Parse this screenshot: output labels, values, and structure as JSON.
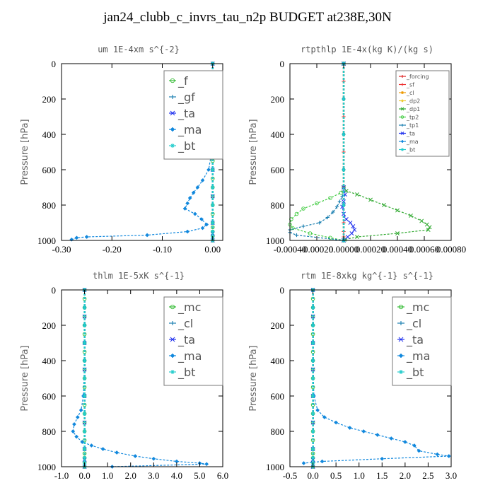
{
  "page": {
    "title": "jan24_clubb_c_invrs_tau_n2p  BUDGET at238E,30N"
  },
  "chart_data": [
    {
      "type": "line",
      "title": "um   1E-4xm s^{-2}",
      "ylabel": "Pressure [hPa]",
      "xlim": [
        -0.3,
        0.02
      ],
      "ylim": [
        1000,
        0
      ],
      "xticks": [
        "-0.30",
        "-0.20",
        "-0.10",
        "0.00"
      ],
      "xtick_values": [
        -0.3,
        -0.2,
        -0.1,
        0.0
      ],
      "yticks": [
        "0",
        "200",
        "400",
        "600",
        "800",
        "1000"
      ],
      "ytick_values": [
        0,
        200,
        400,
        600,
        800,
        1000
      ],
      "legend": {
        "position": "top-right",
        "size": "large"
      },
      "series": [
        {
          "name": "_f",
          "color": "#33bb33",
          "marker": "circle",
          "x": [
            0,
            0,
            0,
            0,
            0,
            0,
            0,
            0,
            0,
            0,
            0,
            0,
            0,
            0,
            0,
            0,
            0,
            0,
            0,
            0,
            0,
            0,
            0
          ],
          "y": [
            0,
            50,
            100,
            150,
            200,
            250,
            300,
            350,
            400,
            450,
            500,
            550,
            600,
            650,
            700,
            750,
            800,
            850,
            900,
            925,
            950,
            975,
            1000
          ]
        },
        {
          "name": "_gf",
          "color": "#1a7fb0",
          "marker": "plus",
          "x": [
            0,
            0,
            0,
            0,
            0,
            0,
            0,
            0,
            0,
            0,
            0,
            0,
            0
          ],
          "y": [
            0,
            100,
            200,
            300,
            400,
            500,
            600,
            700,
            800,
            900,
            950,
            980,
            1000
          ]
        },
        {
          "name": "_ta",
          "color": "#2233ee",
          "marker": "cross",
          "x": [
            0,
            0,
            0,
            0,
            0,
            0,
            0,
            0,
            0
          ],
          "y": [
            0,
            150,
            300,
            450,
            600,
            750,
            900,
            960,
            1000
          ]
        },
        {
          "name": "_ma",
          "color": "#1188dd",
          "marker": "diamond",
          "x": [
            0,
            0,
            0,
            0,
            0,
            -0.002,
            -0.008,
            -0.02,
            -0.03,
            -0.038,
            -0.045,
            -0.05,
            -0.055,
            -0.035,
            -0.022,
            -0.012,
            -0.02,
            -0.05,
            -0.13,
            -0.25,
            -0.27,
            -0.28
          ],
          "y": [
            0,
            100,
            200,
            300,
            400,
            500,
            600,
            660,
            700,
            730,
            760,
            790,
            820,
            850,
            880,
            910,
            930,
            950,
            970,
            980,
            985,
            995
          ]
        },
        {
          "name": "_bt",
          "color": "#22cccc",
          "marker": "star",
          "x": [
            0,
            0,
            0,
            0,
            0,
            0,
            0,
            0,
            0,
            0,
            0,
            0,
            0
          ],
          "y": [
            0,
            100,
            200,
            300,
            400,
            500,
            600,
            700,
            800,
            900,
            950,
            980,
            1000
          ]
        }
      ]
    },
    {
      "type": "line",
      "title": "rtpthlp   1E-4x(kg K)/(kg s)",
      "ylabel": "Pressure [hPa]",
      "xlim": [
        -0.0004,
        0.0008
      ],
      "ylim": [
        1000,
        0
      ],
      "xticks": [
        "-0.00040",
        "-0.00020",
        "0.00000",
        "0.00020",
        "0.00040",
        "0.00060",
        "0.00080"
      ],
      "xtick_values": [
        -0.0004,
        -0.0002,
        0.0,
        0.0002,
        0.0004,
        0.0006,
        0.0008
      ],
      "yticks": [
        "0",
        "200",
        "400",
        "600",
        "800",
        "1000"
      ],
      "ytick_values": [
        0,
        200,
        400,
        600,
        800,
        1000
      ],
      "legend": {
        "position": "top-right",
        "size": "small"
      },
      "series": [
        {
          "name": "_forcing",
          "color": "#dd2222",
          "marker": "plus",
          "x": [
            0,
            0,
            0,
            0,
            0,
            0,
            0,
            0,
            0,
            0,
            0,
            0,
            0
          ],
          "y": [
            0,
            100,
            200,
            300,
            400,
            500,
            600,
            700,
            800,
            900,
            950,
            980,
            1000
          ]
        },
        {
          "name": "_sf",
          "color": "#ee3333",
          "marker": "plus",
          "x": [
            0,
            0,
            0,
            0,
            0,
            0,
            0,
            0,
            0,
            0,
            0,
            0,
            0
          ],
          "y": [
            0,
            100,
            200,
            300,
            400,
            500,
            600,
            700,
            800,
            900,
            950,
            980,
            1000
          ]
        },
        {
          "name": "_cl",
          "color": "#ee9900",
          "marker": "star",
          "x": [
            0,
            0,
            0,
            0,
            0,
            0
          ],
          "y": [
            0,
            200,
            400,
            600,
            800,
            1000
          ]
        },
        {
          "name": "_dp2",
          "color": "#eecc33",
          "marker": "diamond",
          "x": [
            0,
            0,
            0,
            0,
            0,
            0
          ],
          "y": [
            0,
            200,
            400,
            600,
            800,
            1000
          ]
        },
        {
          "name": "_dp1",
          "color": "#33aa33",
          "marker": "cross",
          "x": [
            0,
            0,
            2e-05,
            0.0001,
            0.0002,
            0.0003,
            0.0004,
            0.0005,
            0.00058,
            0.00062,
            0.00064,
            0.00063,
            0.0004,
            0.0001,
            1e-05,
            0.0
          ],
          "y": [
            0,
            700,
            720,
            740,
            770,
            800,
            830,
            860,
            890,
            910,
            925,
            940,
            960,
            980,
            995,
            1000
          ]
        },
        {
          "name": "_tp2",
          "color": "#44cc44",
          "marker": "circle",
          "x": [
            0,
            0,
            -2e-05,
            -0.0001,
            -0.0002,
            -0.0003,
            -0.00035,
            -0.00039,
            -0.0004,
            -0.00038,
            -0.00025,
            -0.0001,
            0.0
          ],
          "y": [
            0,
            700,
            730,
            760,
            790,
            820,
            850,
            880,
            910,
            930,
            960,
            985,
            1000
          ]
        },
        {
          "name": "_tp1",
          "color": "#1a7fb0",
          "marker": "plus",
          "x": [
            0,
            0,
            -1e-05,
            -3e-05,
            -5e-05,
            -8e-05,
            -0.00012,
            -0.00018,
            -0.0003,
            -0.0004,
            -0.0004,
            -0.00035,
            0.0
          ],
          "y": [
            0,
            720,
            750,
            780,
            810,
            840,
            870,
            900,
            920,
            940,
            955,
            970,
            1000
          ]
        },
        {
          "name": "_ta",
          "color": "#2233ee",
          "marker": "cross",
          "x": [
            0,
            0,
            1e-05,
            0.0,
            -1e-05,
            0.0,
            2e-05,
            5e-05,
            7e-05,
            8e-05,
            6e-05,
            3e-05,
            0.0
          ],
          "y": [
            0,
            700,
            740,
            780,
            810,
            850,
            880,
            900,
            920,
            940,
            960,
            980,
            1000
          ]
        },
        {
          "name": "_ma",
          "color": "#1188dd",
          "marker": "diamond",
          "x": [
            0,
            0,
            0,
            0,
            0,
            0
          ],
          "y": [
            0,
            200,
            400,
            600,
            800,
            1000
          ]
        },
        {
          "name": "_bt",
          "color": "#22cccc",
          "marker": "star",
          "x": [
            0,
            0,
            0,
            0,
            0,
            0
          ],
          "y": [
            0,
            200,
            400,
            600,
            800,
            1000
          ]
        }
      ]
    },
    {
      "type": "line",
      "title": "thlm   1E-5xK s^{-1}",
      "ylabel": "Pressure [hPa]",
      "xlim": [
        -1.0,
        6.0
      ],
      "ylim": [
        1000,
        0
      ],
      "xticks": [
        "-1.0",
        "0.0",
        "1.0",
        "2.0",
        "3.0",
        "4.0",
        "5.0",
        "6.0"
      ],
      "xtick_values": [
        -1,
        0,
        1,
        2,
        3,
        4,
        5,
        6
      ],
      "yticks": [
        "0",
        "200",
        "400",
        "600",
        "800",
        "1000"
      ],
      "ytick_values": [
        0,
        200,
        400,
        600,
        800,
        1000
      ],
      "legend": {
        "position": "top-right",
        "size": "large"
      },
      "series": [
        {
          "name": "_mc",
          "color": "#33bb33",
          "marker": "circle",
          "x": [
            0,
            0,
            0,
            0,
            0,
            0,
            0,
            0,
            0,
            0,
            0,
            0,
            0,
            0,
            0,
            0,
            0,
            0,
            0,
            0,
            0,
            0,
            0
          ],
          "y": [
            0,
            50,
            100,
            150,
            200,
            250,
            300,
            350,
            400,
            450,
            500,
            550,
            600,
            650,
            700,
            750,
            800,
            850,
            900,
            925,
            950,
            975,
            1000
          ]
        },
        {
          "name": "_cl",
          "color": "#1a7fb0",
          "marker": "plus",
          "x": [
            0,
            0,
            0,
            0,
            0,
            0,
            0,
            0,
            0,
            0,
            0,
            0,
            0
          ],
          "y": [
            0,
            100,
            200,
            300,
            400,
            500,
            600,
            700,
            800,
            900,
            950,
            980,
            1000
          ]
        },
        {
          "name": "_ta",
          "color": "#2233ee",
          "marker": "cross",
          "x": [
            0,
            0,
            0,
            0,
            0,
            0,
            0,
            0,
            0
          ],
          "y": [
            0,
            150,
            300,
            450,
            600,
            750,
            900,
            960,
            1000
          ]
        },
        {
          "name": "_ma",
          "color": "#1188dd",
          "marker": "diamond",
          "x": [
            0,
            0,
            0,
            0,
            0,
            -0.05,
            -0.15,
            -0.3,
            -0.45,
            -0.5,
            -0.35,
            -0.1,
            0.3,
            0.8,
            1.4,
            2.2,
            3.0,
            4.0,
            5.0,
            5.3,
            1.2
          ],
          "y": [
            0,
            100,
            200,
            300,
            400,
            600,
            680,
            720,
            760,
            800,
            830,
            860,
            880,
            900,
            920,
            940,
            955,
            970,
            980,
            985,
            1000
          ]
        },
        {
          "name": "_bt",
          "color": "#22cccc",
          "marker": "star",
          "x": [
            0,
            0,
            0,
            0,
            0,
            0,
            0,
            0,
            0,
            0,
            0,
            0,
            0
          ],
          "y": [
            0,
            100,
            200,
            300,
            400,
            500,
            600,
            700,
            800,
            900,
            950,
            980,
            1000
          ]
        }
      ]
    },
    {
      "type": "line",
      "title": "rtm   1E-8xkg kg^{-1} s^{-1}",
      "ylabel": "Pressure [hPa]",
      "xlim": [
        -0.5,
        3.0
      ],
      "ylim": [
        1000,
        0
      ],
      "xticks": [
        "-0.5",
        "0.0",
        "0.5",
        "1.0",
        "1.5",
        "2.0",
        "2.5",
        "3.0"
      ],
      "xtick_values": [
        -0.5,
        0.0,
        0.5,
        1.0,
        1.5,
        2.0,
        2.5,
        3.0
      ],
      "yticks": [
        "0",
        "200",
        "400",
        "600",
        "800",
        "1000"
      ],
      "ytick_values": [
        0,
        200,
        400,
        600,
        800,
        1000
      ],
      "legend": {
        "position": "top-right",
        "size": "large"
      },
      "series": [
        {
          "name": "_mc",
          "color": "#33bb33",
          "marker": "circle",
          "x": [
            0,
            0,
            0,
            0,
            0,
            0,
            0,
            0,
            0,
            0,
            0,
            0,
            0,
            0,
            0,
            0,
            0,
            0,
            0,
            0,
            0,
            0,
            0
          ],
          "y": [
            0,
            50,
            100,
            150,
            200,
            250,
            300,
            350,
            400,
            450,
            500,
            550,
            600,
            650,
            700,
            750,
            800,
            850,
            900,
            925,
            950,
            975,
            1000
          ]
        },
        {
          "name": "_cl",
          "color": "#1a7fb0",
          "marker": "plus",
          "x": [
            0,
            0,
            0,
            0,
            0,
            0,
            0,
            0,
            0,
            0,
            0,
            0,
            0
          ],
          "y": [
            0,
            100,
            200,
            300,
            400,
            500,
            600,
            700,
            800,
            900,
            950,
            980,
            1000
          ]
        },
        {
          "name": "_ta",
          "color": "#2233ee",
          "marker": "cross",
          "x": [
            0,
            0,
            0,
            0,
            0,
            0,
            0,
            0,
            0
          ],
          "y": [
            0,
            150,
            300,
            450,
            600,
            750,
            900,
            960,
            1000
          ]
        },
        {
          "name": "_ma",
          "color": "#1188dd",
          "marker": "diamond",
          "x": [
            0,
            0,
            0,
            0,
            0,
            0.02,
            0.1,
            0.25,
            0.5,
            0.8,
            1.1,
            1.4,
            1.7,
            2.0,
            2.2,
            2.3,
            2.7,
            2.95,
            1.5,
            0.2,
            -0.2
          ],
          "y": [
            0,
            100,
            200,
            300,
            400,
            600,
            680,
            720,
            750,
            780,
            800,
            820,
            840,
            860,
            880,
            910,
            930,
            940,
            955,
            970,
            980
          ]
        },
        {
          "name": "_bt",
          "color": "#22cccc",
          "marker": "star",
          "x": [
            0,
            0,
            0,
            0,
            0,
            0,
            0,
            0,
            0,
            0,
            0,
            0,
            0
          ],
          "y": [
            0,
            100,
            200,
            300,
            400,
            500,
            600,
            700,
            800,
            900,
            950,
            980,
            1000
          ]
        }
      ]
    }
  ]
}
